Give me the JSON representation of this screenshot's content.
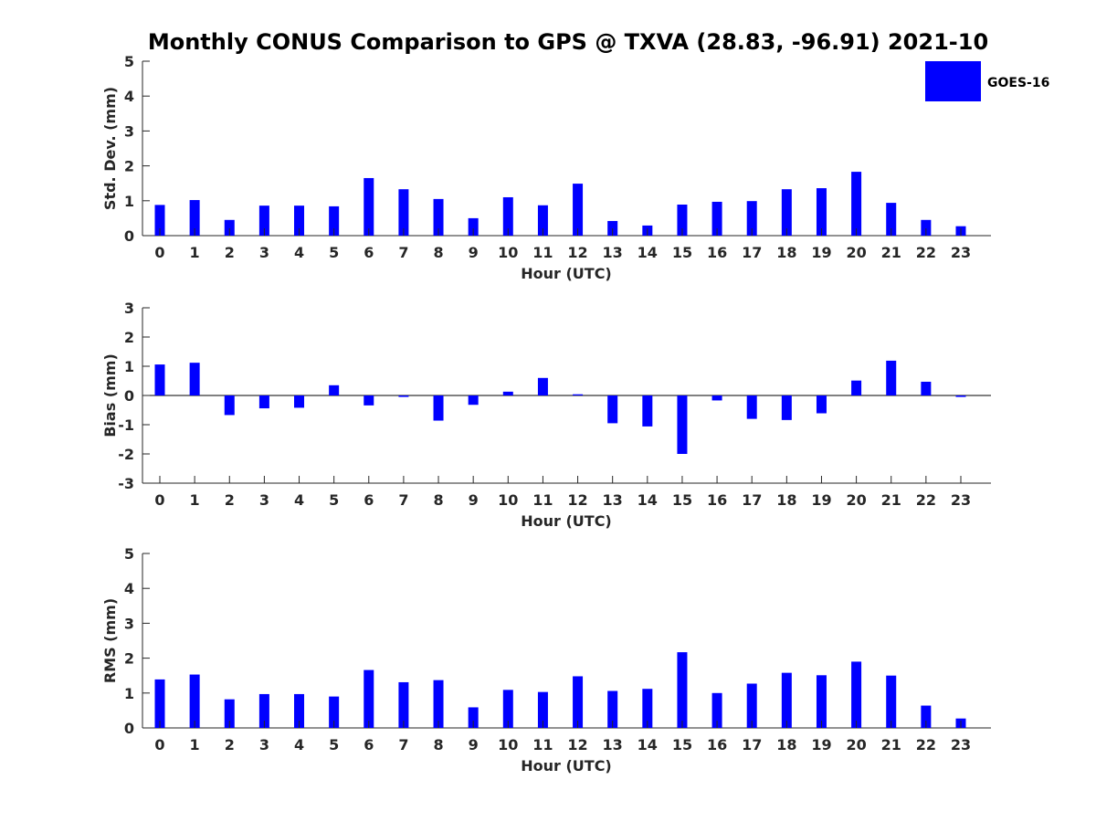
{
  "title": "Monthly CONUS Comparison to GPS @ TXVA (28.83, -96.91) 2021-10",
  "bar_color": "#0000ff",
  "legend": {
    "label": "GOES-16"
  },
  "chart_data": [
    {
      "type": "bar",
      "xlabel": "Hour (UTC)",
      "ylabel": "Std. Dev. (mm)",
      "ylim": [
        0,
        5
      ],
      "yticks": [
        0,
        1,
        2,
        3,
        4,
        5
      ],
      "categories": [
        "0",
        "1",
        "2",
        "3",
        "4",
        "5",
        "6",
        "7",
        "8",
        "9",
        "10",
        "11",
        "12",
        "13",
        "14",
        "15",
        "16",
        "17",
        "18",
        "19",
        "20",
        "21",
        "22",
        "23"
      ],
      "series": [
        {
          "name": "GOES-16",
          "values": [
            0.88,
            1.02,
            0.45,
            0.86,
            0.86,
            0.84,
            1.65,
            1.33,
            1.05,
            0.5,
            1.1,
            0.87,
            1.49,
            0.42,
            0.29,
            0.89,
            0.97,
            0.99,
            1.33,
            1.36,
            1.83,
            0.94,
            0.45,
            0.27
          ]
        }
      ],
      "legend": "top-right",
      "grid": false
    },
    {
      "type": "bar",
      "xlabel": "Hour (UTC)",
      "ylabel": "Bias (mm)",
      "ylim": [
        -3,
        3
      ],
      "yticks": [
        -3,
        -2,
        -1,
        0,
        1,
        2,
        3
      ],
      "categories": [
        "0",
        "1",
        "2",
        "3",
        "4",
        "5",
        "6",
        "7",
        "8",
        "9",
        "10",
        "11",
        "12",
        "13",
        "14",
        "15",
        "16",
        "17",
        "18",
        "19",
        "20",
        "21",
        "22",
        "23"
      ],
      "series": [
        {
          "name": "GOES-16",
          "values": [
            1.06,
            1.12,
            -0.67,
            -0.44,
            -0.42,
            0.35,
            -0.34,
            -0.05,
            -0.86,
            -0.32,
            0.13,
            0.6,
            0.04,
            -0.95,
            -1.06,
            -2.0,
            -0.17,
            -0.8,
            -0.84,
            -0.61,
            0.51,
            1.19,
            0.47,
            -0.05
          ]
        }
      ],
      "grid": false
    },
    {
      "type": "bar",
      "xlabel": "Hour (UTC)",
      "ylabel": "RMS (mm)",
      "ylim": [
        0,
        5
      ],
      "yticks": [
        0,
        1,
        2,
        3,
        4,
        5
      ],
      "categories": [
        "0",
        "1",
        "2",
        "3",
        "4",
        "5",
        "6",
        "7",
        "8",
        "9",
        "10",
        "11",
        "12",
        "13",
        "14",
        "15",
        "16",
        "17",
        "18",
        "19",
        "20",
        "21",
        "22",
        "23"
      ],
      "series": [
        {
          "name": "GOES-16",
          "values": [
            1.39,
            1.53,
            0.82,
            0.97,
            0.97,
            0.9,
            1.66,
            1.31,
            1.37,
            0.59,
            1.09,
            1.03,
            1.48,
            1.06,
            1.12,
            2.17,
            1.0,
            1.27,
            1.58,
            1.51,
            1.9,
            1.5,
            0.64,
            0.27
          ]
        }
      ],
      "grid": false
    }
  ]
}
